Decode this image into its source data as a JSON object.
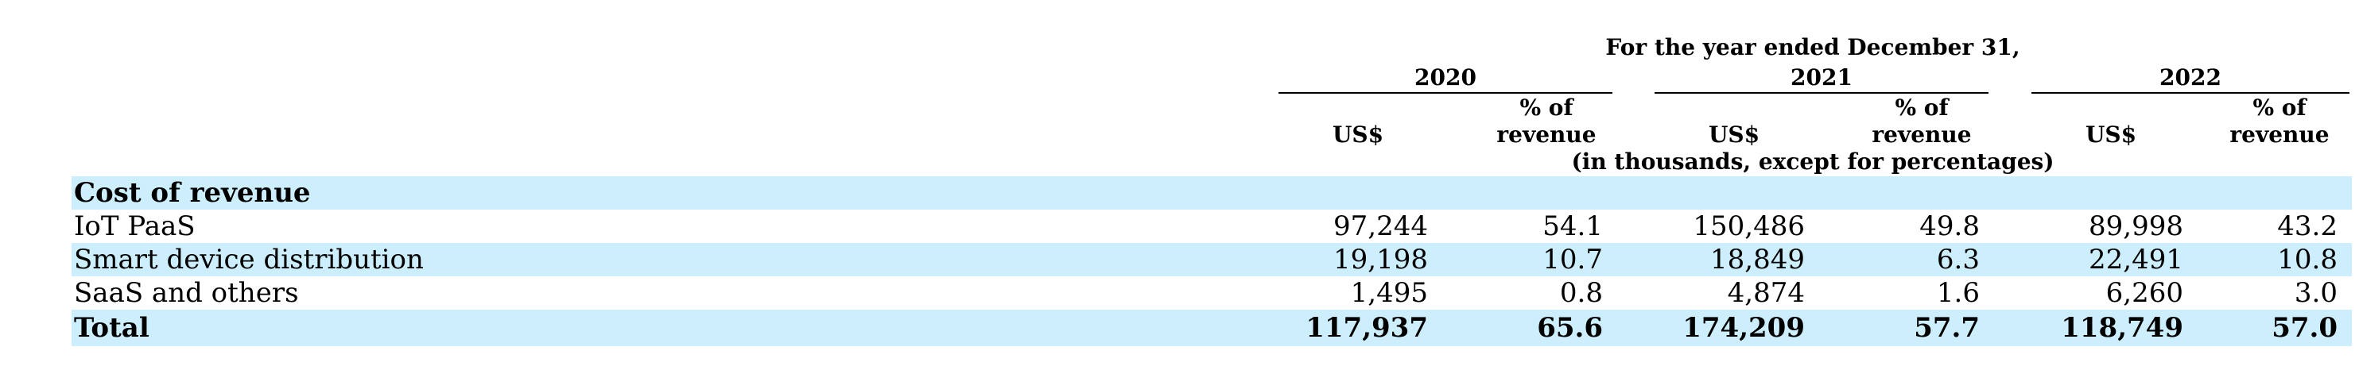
{
  "header": {
    "period_caption": "For the year ended December 31,",
    "years": [
      "2020",
      "2021",
      "2022"
    ],
    "col_us": "US$",
    "col_pct_line1": "% of",
    "col_pct_line2": "revenue",
    "units_note": "(in thousands, except for percentages)"
  },
  "section_title": "Cost of revenue",
  "rows": [
    {
      "label": "IoT PaaS",
      "values": [
        "97,244",
        "54.1",
        "150,486",
        "49.8",
        "89,998",
        "43.2"
      ]
    },
    {
      "label": "Smart device distribution",
      "values": [
        "19,198",
        "10.7",
        "18,849",
        "6.3",
        "22,491",
        "10.8"
      ]
    },
    {
      "label": "SaaS and others",
      "values": [
        "1,495",
        "0.8",
        "4,874",
        "1.6",
        "6,260",
        "3.0"
      ]
    }
  ],
  "total": {
    "label": "Total",
    "values": [
      "117,937",
      "65.6",
      "174,209",
      "57.7",
      "118,749",
      "57.0"
    ]
  },
  "colors": {
    "row_highlight": "#cdeefc",
    "text": "#000000"
  }
}
